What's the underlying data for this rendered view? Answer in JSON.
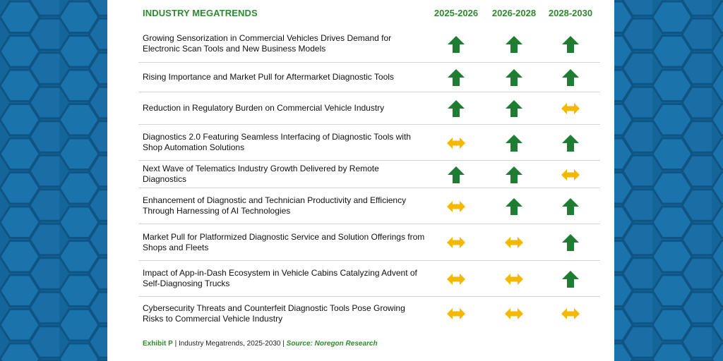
{
  "header": {
    "title": "INDUSTRY MEGATRENDS",
    "columns": [
      "2025-2026",
      "2026-2028",
      "2028-2030"
    ]
  },
  "colors": {
    "up": "#1e7d33",
    "neutral": "#f5b800",
    "heading_green": "#2e8a2e",
    "background_blue": "#14669a"
  },
  "legend_icons": {
    "up": "arrow-up-icon",
    "neutral": "double-arrow-horizontal-icon"
  },
  "rows": [
    {
      "label": "Growing Sensorization in Commercial Vehicles Drives Demand for Electronic Scan Tools and New Business Models",
      "trends": [
        "up",
        "up",
        "up"
      ]
    },
    {
      "label": "Rising Importance and Market Pull for Aftermarket Diagnostic Tools",
      "trends": [
        "up",
        "up",
        "up"
      ]
    },
    {
      "label": "Reduction in Regulatory Burden on Commercial Vehicle Industry",
      "trends": [
        "up",
        "up",
        "neutral"
      ]
    },
    {
      "label": "Diagnostics 2.0 Featuring Seamless Interfacing of Diagnostic Tools with Shop Automation Solutions",
      "trends": [
        "neutral",
        "up",
        "up"
      ]
    },
    {
      "label": "Next Wave of Telematics Industry Growth Delivered by Remote Diagnostics",
      "trends": [
        "up",
        "up",
        "neutral"
      ]
    },
    {
      "label": "Enhancement of Diagnostic and Technician Productivity and Efficiency Through Harnessing of AI Technologies",
      "trends": [
        "neutral",
        "up",
        "up"
      ]
    },
    {
      "label": "Market Pull for Platformized Diagnostic Service and Solution Offerings from Shops and Fleets",
      "trends": [
        "neutral",
        "neutral",
        "up"
      ]
    },
    {
      "label": "Impact of App-in-Dash Ecosystem in Vehicle Cabins Catalyzing Advent of Self-Diagnosing Trucks",
      "trends": [
        "neutral",
        "neutral",
        "up"
      ]
    },
    {
      "label": "Cybersecurity Threats and Counterfeit Diagnostic Tools Pose Growing Risks to Commercial Vehicle Industry",
      "trends": [
        "neutral",
        "neutral",
        "neutral"
      ]
    }
  ],
  "caption": {
    "exhibit": "Exhibit P",
    "sep1": " | ",
    "text": "Industry Megatrends, 2025-2030",
    "sep2": " | ",
    "source_label": "Source:",
    "source": " Noregon Research"
  }
}
